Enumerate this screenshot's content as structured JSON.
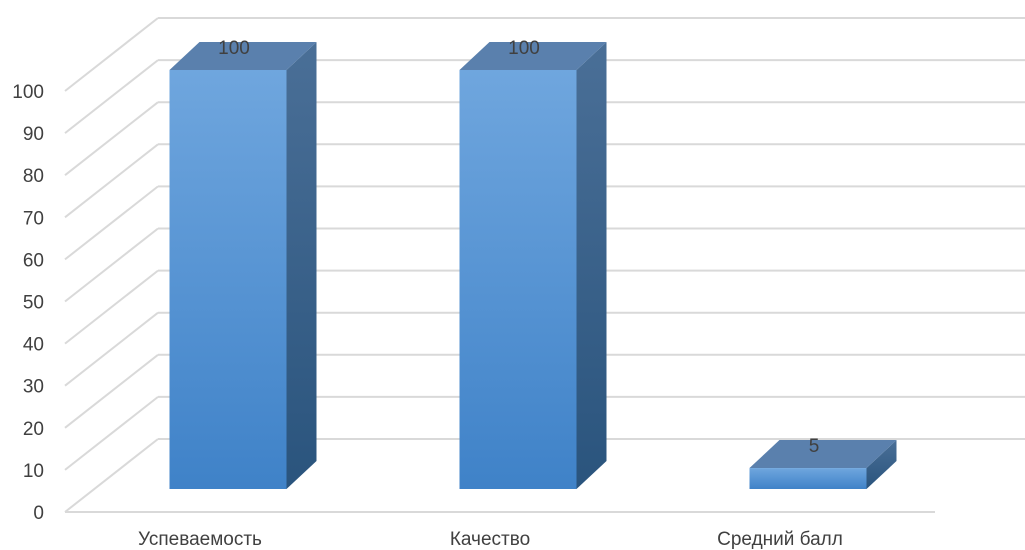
{
  "chart_data": {
    "type": "bar",
    "title": "",
    "xlabel": "",
    "ylabel": "",
    "categories": [
      "Успеваемость",
      "Качество",
      "Средний балл"
    ],
    "series": [
      {
        "values": [
          100,
          100,
          5
        ]
      }
    ],
    "data_labels": [
      "100",
      "100",
      "5"
    ],
    "ylim": [
      0,
      100
    ],
    "y_ticks": [
      "0",
      "10",
      "20",
      "30",
      "40",
      "50",
      "60",
      "70",
      "80",
      "90",
      "100"
    ],
    "grid": true,
    "legend": "none",
    "style": "3d-column",
    "colors": {
      "bar_front_top": "#6fa6de",
      "bar_front_bottom": "#3f82c8",
      "bar_side": "#2f5f8e",
      "bar_top": "#5a80ad",
      "grid": "#d9d9d9",
      "text": "#404040"
    }
  }
}
